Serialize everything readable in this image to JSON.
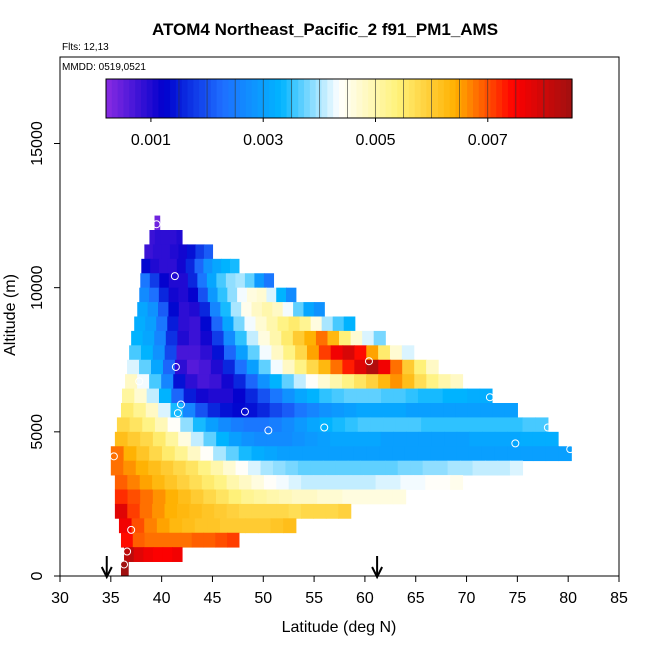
{
  "chart_data": {
    "type": "heatmap",
    "title": "ATOM4 Northeast_Pacific_2 f91_PM1_AMS",
    "annotations": {
      "flights": "Flts: 12,13",
      "dates": "MMDD: 0519,0521"
    },
    "xlabel": "Latitude (deg N)",
    "ylabel": "Altitude (m)",
    "xlim": [
      30,
      85
    ],
    "ylim": [
      0,
      18000
    ],
    "x_ticks": [
      30,
      35,
      40,
      45,
      50,
      55,
      60,
      65,
      70,
      75,
      80,
      85
    ],
    "y_ticks": [
      0,
      5000,
      10000,
      15000
    ],
    "colorbar": {
      "placement": "top",
      "range": [
        0.0002,
        0.0085
      ],
      "tick_values": [
        0.001,
        0.003,
        0.005,
        0.007
      ],
      "tick_labels": [
        "0.001",
        "0.003",
        "0.005",
        "0.007"
      ],
      "colors": [
        "#8a2be2",
        "#0000cd",
        "#1e6fff",
        "#00b4ff",
        "#ffffff",
        "#fff27a",
        "#ffb000",
        "#ff0000",
        "#a01010"
      ]
    },
    "arrows_latitude": [
      34.6,
      61.2
    ],
    "grid": false,
    "rows": [
      {
        "alt": 12250,
        "lat_start": 39.3,
        "lat_end": 39.8,
        "values": [
          0.0004
        ]
      },
      {
        "alt": 11750,
        "lat_start": 38.8,
        "lat_end": 42.0,
        "values": [
          0.0008,
          0.0009,
          0.0009,
          0.0009,
          0.0009,
          0.001
        ]
      },
      {
        "alt": 11250,
        "lat_start": 38.3,
        "lat_end": 45.0,
        "values": [
          0.0008,
          0.0009,
          0.0009,
          0.001,
          0.0011,
          0.0014,
          0.0018,
          0.0021
        ]
      },
      {
        "alt": 10750,
        "lat_start": 38.0,
        "lat_end": 47.6,
        "values": [
          0.0013,
          0.001,
          0.0009,
          0.0009,
          0.0011,
          0.0016,
          0.0022,
          0.0028,
          0.0031,
          0.0033,
          0.0034
        ]
      },
      {
        "alt": 10250,
        "lat_start": 37.9,
        "lat_end": 51.0,
        "values": [
          0.0024,
          0.0018,
          0.0012,
          0.001,
          0.001,
          0.0016,
          0.0024,
          0.0031,
          0.0036,
          0.0039,
          0.004,
          0.0037,
          0.0029,
          0.0024
        ]
      },
      {
        "alt": 9750,
        "lat_start": 37.8,
        "lat_end": 53.2,
        "values": [
          0.0027,
          0.0023,
          0.0016,
          0.0011,
          0.001,
          0.0012,
          0.002,
          0.0029,
          0.0035,
          0.0039,
          0.0043,
          0.0046,
          0.0047,
          0.0042,
          0.0033,
          0.0027
        ]
      },
      {
        "alt": 9250,
        "lat_start": 37.6,
        "lat_end": 56.0,
        "values": [
          0.0031,
          0.0028,
          0.0021,
          0.0013,
          0.0009,
          0.001,
          0.0016,
          0.0026,
          0.0034,
          0.004,
          0.0045,
          0.0048,
          0.005,
          0.0048,
          0.0043,
          0.0037,
          0.0031,
          0.0028
        ]
      },
      {
        "alt": 8750,
        "lat_start": 37.3,
        "lat_end": 59.0,
        "values": [
          0.0032,
          0.003,
          0.0024,
          0.0015,
          0.0009,
          0.0008,
          0.0013,
          0.0022,
          0.0031,
          0.0038,
          0.0043,
          0.0047,
          0.005,
          0.0053,
          0.0055,
          0.0052,
          0.0046,
          0.004,
          0.0036,
          0.0033
        ]
      },
      {
        "alt": 8250,
        "lat_start": 37.0,
        "lat_end": 62.0,
        "values": [
          0.0033,
          0.0031,
          0.0026,
          0.0017,
          0.001,
          0.0008,
          0.0011,
          0.0018,
          0.0027,
          0.0035,
          0.0041,
          0.0046,
          0.005,
          0.0055,
          0.006,
          0.0064,
          0.0068,
          0.0063,
          0.0054,
          0.0047,
          0.0042,
          0.0038
        ]
      },
      {
        "alt": 7750,
        "lat_start": 36.8,
        "lat_end": 64.8,
        "values": [
          0.0036,
          0.0033,
          0.0028,
          0.0019,
          0.0007,
          0.0007,
          0.0009,
          0.0014,
          0.0022,
          0.003,
          0.0037,
          0.0043,
          0.0048,
          0.0053,
          0.0058,
          0.0065,
          0.0071,
          0.0076,
          0.0079,
          0.0074,
          0.0065,
          0.0055,
          0.0047,
          0.0042
        ]
      },
      {
        "alt": 7250,
        "lat_start": 36.6,
        "lat_end": 67.2,
        "values": [
          0.0042,
          0.0037,
          0.0031,
          0.0022,
          0.0009,
          0.0006,
          0.0007,
          0.001,
          0.0016,
          0.0023,
          0.003,
          0.0037,
          0.0043,
          0.0048,
          0.0053,
          0.0058,
          0.0063,
          0.0068,
          0.0073,
          0.0078,
          0.0083,
          0.0076,
          0.0068,
          0.006,
          0.0054,
          0.0048
        ]
      },
      {
        "alt": 6750,
        "lat_start": 36.4,
        "lat_end": 69.6,
        "values": [
          0.0048,
          0.0043,
          0.0036,
          0.0026,
          0.0014,
          0.0009,
          0.0007,
          0.0008,
          0.0011,
          0.0016,
          0.0022,
          0.0028,
          0.0033,
          0.0037,
          0.0041,
          0.0044,
          0.0047,
          0.005,
          0.0053,
          0.0056,
          0.0059,
          0.0063,
          0.0066,
          0.0062,
          0.0057,
          0.0053,
          0.005,
          0.0048
        ]
      },
      {
        "alt": 6250,
        "lat_start": 36.1,
        "lat_end": 72.5,
        "values": [
          0.0051,
          0.0047,
          0.0041,
          0.0033,
          0.0022,
          0.0015,
          0.0011,
          0.001,
          0.001,
          0.0012,
          0.0016,
          0.002,
          0.0024,
          0.0028,
          0.0031,
          0.0033,
          0.0035,
          0.0036,
          0.0037,
          0.0037,
          0.0037,
          0.0036,
          0.0036,
          0.0035,
          0.0034,
          0.0034,
          0.0033,
          0.0033,
          0.0032,
          0.0032
        ]
      },
      {
        "alt": 5750,
        "lat_start": 36.0,
        "lat_end": 75.0,
        "values": [
          0.0055,
          0.0052,
          0.0048,
          0.0042,
          0.0034,
          0.0026,
          0.002,
          0.0016,
          0.0014,
          0.0013,
          0.0014,
          0.0016,
          0.0019,
          0.0021,
          0.0024,
          0.0026,
          0.0028,
          0.0029,
          0.003,
          0.0031,
          0.0031,
          0.0031,
          0.0031,
          0.003,
          0.003,
          0.003,
          0.003,
          0.003,
          0.003,
          0.003,
          0.003,
          0.003
        ]
      },
      {
        "alt": 5250,
        "lat_start": 35.6,
        "lat_end": 78.0,
        "values": [
          0.0058,
          0.0056,
          0.0053,
          0.0049,
          0.0044,
          0.0039,
          0.0034,
          0.003,
          0.0027,
          0.0025,
          0.0024,
          0.0024,
          0.0025,
          0.0027,
          0.0029,
          0.0031,
          0.0033,
          0.0034,
          0.0035,
          0.0036,
          0.0036,
          0.0036,
          0.0036,
          0.0036,
          0.0035,
          0.0035,
          0.0035,
          0.0035,
          0.0035,
          0.0035,
          0.0035,
          0.0035,
          0.0036,
          0.0036
        ]
      },
      {
        "alt": 4750,
        "lat_start": 35.4,
        "lat_end": 79.0,
        "values": [
          0.0062,
          0.006,
          0.0058,
          0.0055,
          0.0051,
          0.0046,
          0.0041,
          0.0037,
          0.0033,
          0.003,
          0.0028,
          0.0027,
          0.0027,
          0.0027,
          0.0028,
          0.0029,
          0.003,
          0.0031,
          0.0031,
          0.0031,
          0.0031,
          0.003,
          0.003,
          0.003,
          0.003,
          0.003,
          0.003,
          0.003,
          0.0031,
          0.0031,
          0.0031,
          0.0031,
          0.0032,
          0.0032,
          0.0032
        ]
      },
      {
        "alt": 4250,
        "lat_start": 35.0,
        "lat_end": 80.3,
        "values": [
          0.0068,
          0.0064,
          0.0061,
          0.0058,
          0.0055,
          0.0052,
          0.0048,
          0.0044,
          0.004,
          0.0037,
          0.0034,
          0.0032,
          0.0031,
          0.003,
          0.003,
          0.003,
          0.003,
          0.003,
          0.003,
          0.003,
          0.003,
          0.003,
          0.003,
          0.003,
          0.003,
          0.003,
          0.003,
          0.003,
          0.003,
          0.003,
          0.003,
          0.003,
          0.003,
          0.003,
          0.003,
          0.003
        ]
      },
      {
        "alt": 3750,
        "lat_start": 35.0,
        "lat_end": 75.5,
        "values": [
          0.0068,
          0.0066,
          0.0064,
          0.0062,
          0.006,
          0.0058,
          0.0056,
          0.0053,
          0.005,
          0.0047,
          0.0044,
          0.0042,
          0.004,
          0.0039,
          0.0038,
          0.0037,
          0.0037,
          0.0037,
          0.0037,
          0.0037,
          0.0037,
          0.0037,
          0.0037,
          0.0038,
          0.0038,
          0.0039,
          0.0039,
          0.004,
          0.004,
          0.0041,
          0.0041,
          0.0041,
          0.0042
        ]
      },
      {
        "alt": 3250,
        "lat_start": 35.4,
        "lat_end": 69.6,
        "values": [
          0.0069,
          0.0067,
          0.0065,
          0.0063,
          0.0061,
          0.0059,
          0.0057,
          0.0055,
          0.0053,
          0.005,
          0.0048,
          0.0046,
          0.0044,
          0.0043,
          0.0042,
          0.0041,
          0.0041,
          0.0041,
          0.0041,
          0.0041,
          0.0041,
          0.0042,
          0.0042,
          0.0043,
          0.0043,
          0.0044,
          0.0044,
          0.0045
        ]
      },
      {
        "alt": 2750,
        "lat_start": 35.4,
        "lat_end": 64.0,
        "values": [
          0.0072,
          0.007,
          0.0068,
          0.0066,
          0.0064,
          0.0062,
          0.006,
          0.0058,
          0.0056,
          0.0054,
          0.0052,
          0.0051,
          0.005,
          0.0049,
          0.0048,
          0.0048,
          0.0047,
          0.0047,
          0.0046,
          0.0046,
          0.0046,
          0.0046,
          0.0046
        ]
      },
      {
        "alt": 2250,
        "lat_start": 35.4,
        "lat_end": 58.6,
        "values": [
          0.0078,
          0.0071,
          0.0068,
          0.0066,
          0.0064,
          0.0063,
          0.0062,
          0.0061,
          0.006,
          0.0059,
          0.0058,
          0.0058,
          0.0058,
          0.0058,
          0.0057,
          0.0058,
          0.0058,
          0.0058,
          0.0059
        ]
      },
      {
        "alt": 1750,
        "lat_start": 35.8,
        "lat_end": 53.2,
        "values": [
          0.0076,
          0.007,
          0.0067,
          0.0065,
          0.0063,
          0.0062,
          0.0061,
          0.0061,
          0.006,
          0.006,
          0.006,
          0.006,
          0.0061,
          0.0062
        ]
      },
      {
        "alt": 1250,
        "lat_start": 36.0,
        "lat_end": 47.6,
        "values": [
          0.0074,
          0.0069,
          0.0068,
          0.0068,
          0.0068,
          0.0068,
          0.0069,
          0.0069,
          0.007,
          0.0071
        ]
      },
      {
        "alt": 750,
        "lat_start": 36.3,
        "lat_end": 42.0,
        "values": [
          0.0082,
          0.0078,
          0.0076,
          0.0075,
          0.0075,
          0.0076
        ]
      },
      {
        "alt": 250,
        "lat_start": 36.0,
        "lat_end": 36.7,
        "values": [
          0.0086
        ]
      }
    ],
    "flight_points": [
      {
        "lat": 39.5,
        "alt": 12200
      },
      {
        "lat": 41.3,
        "alt": 10400
      },
      {
        "lat": 41.4,
        "alt": 7250
      },
      {
        "lat": 37.8,
        "alt": 6750
      },
      {
        "lat": 41.9,
        "alt": 5950
      },
      {
        "lat": 41.6,
        "alt": 5650
      },
      {
        "lat": 48.2,
        "alt": 5700
      },
      {
        "lat": 50.5,
        "alt": 5050
      },
      {
        "lat": 56.0,
        "alt": 5150
      },
      {
        "lat": 60.4,
        "alt": 7450
      },
      {
        "lat": 72.3,
        "alt": 6200
      },
      {
        "lat": 74.8,
        "alt": 4600
      },
      {
        "lat": 78.0,
        "alt": 5150
      },
      {
        "lat": 80.2,
        "alt": 4400
      },
      {
        "lat": 35.3,
        "alt": 4150
      },
      {
        "lat": 37.0,
        "alt": 1600
      },
      {
        "lat": 36.6,
        "alt": 850
      },
      {
        "lat": 36.3,
        "alt": 400
      }
    ]
  }
}
